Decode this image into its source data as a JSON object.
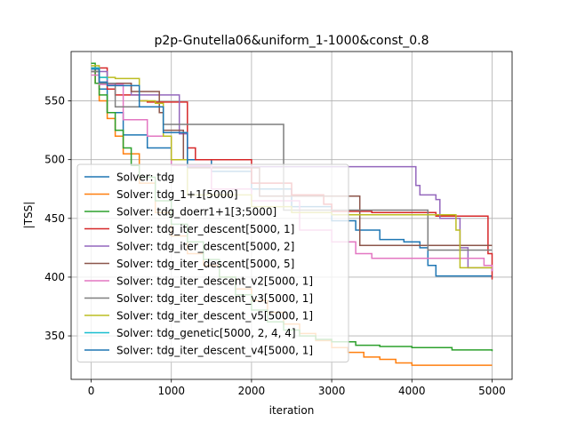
{
  "chart_data": {
    "type": "line",
    "title": "p2p-Gnutella06&uniform_1-1000&const_0.8",
    "xlabel": "iteration",
    "ylabel": "|TSS|",
    "xlim": [
      -250,
      5250
    ],
    "ylim": [
      313,
      592
    ],
    "xticks": [
      0,
      1000,
      2000,
      3000,
      4000,
      5000
    ],
    "yticks": [
      350,
      400,
      450,
      500,
      550
    ],
    "grid": true,
    "legend_position": "lower left",
    "series": [
      {
        "name": "Solver: tdg",
        "color": "#1f77b4",
        "x": [
          0,
          100,
          200,
          400,
          700,
          1000,
          1500,
          2000,
          2500,
          3000,
          3300,
          3600,
          3900,
          4100,
          4200,
          4300,
          5000
        ],
        "y": [
          578,
          560,
          540,
          521,
          510,
          500,
          490,
          475,
          460,
          448,
          440,
          432,
          430,
          425,
          410,
          401,
          401
        ]
      },
      {
        "name": "Solver: tdg_1+1[5000]",
        "color": "#ff7f0e",
        "x": [
          0,
          50,
          100,
          200,
          300,
          400,
          600,
          800,
          1000,
          1200,
          1400,
          1600,
          1800,
          2000,
          2200,
          2400,
          2600,
          2800,
          3000,
          3200,
          3400,
          3600,
          3800,
          4000,
          4500,
          5000
        ],
        "y": [
          578,
          565,
          550,
          535,
          520,
          505,
          480,
          455,
          435,
          420,
          410,
          400,
          390,
          380,
          370,
          360,
          352,
          346,
          340,
          336,
          332,
          330,
          327,
          325,
          325,
          325
        ]
      },
      {
        "name": "Solver: tdg_doerr1+1[3;5000]",
        "color": "#2ca02c",
        "x": [
          0,
          50,
          100,
          200,
          300,
          400,
          500,
          600,
          800,
          1000,
          1200,
          1400,
          1600,
          1800,
          2000,
          2200,
          2400,
          2600,
          2800,
          3000,
          3300,
          3600,
          4000,
          4500,
          5000
        ],
        "y": [
          582,
          565,
          555,
          540,
          525,
          510,
          495,
          485,
          465,
          445,
          430,
          415,
          400,
          385,
          372,
          362,
          355,
          350,
          347,
          345,
          342,
          341,
          340,
          338,
          337
        ]
      },
      {
        "name": "Solver: tdg_iter_descent[5000, 1]",
        "color": "#d62728",
        "x": [
          0,
          200,
          300,
          600,
          700,
          1000,
          1150,
          1200,
          1300,
          2000,
          2500,
          2900,
          3000,
          3500,
          3900,
          4300,
          4800,
          4950,
          5000
        ],
        "y": [
          578,
          560,
          555,
          550,
          549,
          549,
          549,
          510,
          500,
          480,
          470,
          462,
          456,
          455,
          455,
          452,
          452,
          420,
          398
        ]
      },
      {
        "name": "Solver: tdg_iter_descent[5000, 2]",
        "color": "#9467bd",
        "x": [
          0,
          200,
          500,
          1100,
          1200,
          3000,
          3300,
          3700,
          4000,
          4050,
          4100,
          4300,
          4350,
          4600,
          4700,
          5000
        ],
        "y": [
          575,
          565,
          555,
          522,
          494,
          494,
          494,
          494,
          494,
          478,
          470,
          466,
          450,
          425,
          408,
          405
        ]
      },
      {
        "name": "Solver: tdg_iter_descent[5000, 5]",
        "color": "#8c564b",
        "x": [
          0,
          100,
          500,
          800,
          850,
          900,
          1150,
          1200,
          2000,
          2100,
          2500,
          3000,
          3330,
          3350,
          4000,
          4600,
          5000
        ],
        "y": [
          575,
          565,
          558,
          558,
          540,
          525,
          500,
          493,
          493,
          469,
          469,
          469,
          469,
          427,
          427,
          427,
          427
        ]
      },
      {
        "name": "Solver: tdg_iter_descent_v2[5000, 1]",
        "color": "#e377c2",
        "x": [
          0,
          100,
          400,
          700,
          1000,
          1500,
          2000,
          2600,
          3000,
          3300,
          3500,
          4000,
          4600,
          4900,
          5000
        ],
        "y": [
          572,
          564,
          534,
          520,
          495,
          475,
          465,
          440,
          430,
          420,
          416,
          416,
          416,
          410,
          405
        ]
      },
      {
        "name": "Solver: tdg_iter_descent_v3[5000, 1]",
        "color": "#7f7f7f",
        "x": [
          0,
          100,
          300,
          900,
          2000,
          2350,
          2400,
          3000,
          4000,
          4150,
          4200,
          5000
        ],
        "y": [
          575,
          565,
          545,
          530,
          530,
          530,
          457,
          457,
          457,
          457,
          423,
          423
        ]
      },
      {
        "name": "Solver: tdg_iter_descent_v5[5000, 1]",
        "color": "#bcbd22",
        "x": [
          0,
          100,
          300,
          600,
          800,
          900,
          1000,
          1200,
          2000,
          2500,
          3000,
          4000,
          4500,
          4550,
          4600,
          5000
        ],
        "y": [
          580,
          570,
          569,
          550,
          548,
          520,
          500,
          470,
          460,
          455,
          453,
          453,
          453,
          440,
          408,
          408
        ]
      },
      {
        "name": "Solver: tdg_genetic[5000, 2, 4, 4]",
        "color": "#17becf",
        "x": [
          0,
          100,
          200
        ],
        "y": [
          578,
          570,
          568
        ]
      },
      {
        "name": "Solver: tdg_iter_descent_v4[5000, 1]",
        "color": "#1f77b4",
        "x": [
          0,
          100,
          200,
          600,
          900,
          1200
        ],
        "y": [
          577,
          566,
          563,
          545,
          523,
          493
        ]
      }
    ]
  }
}
